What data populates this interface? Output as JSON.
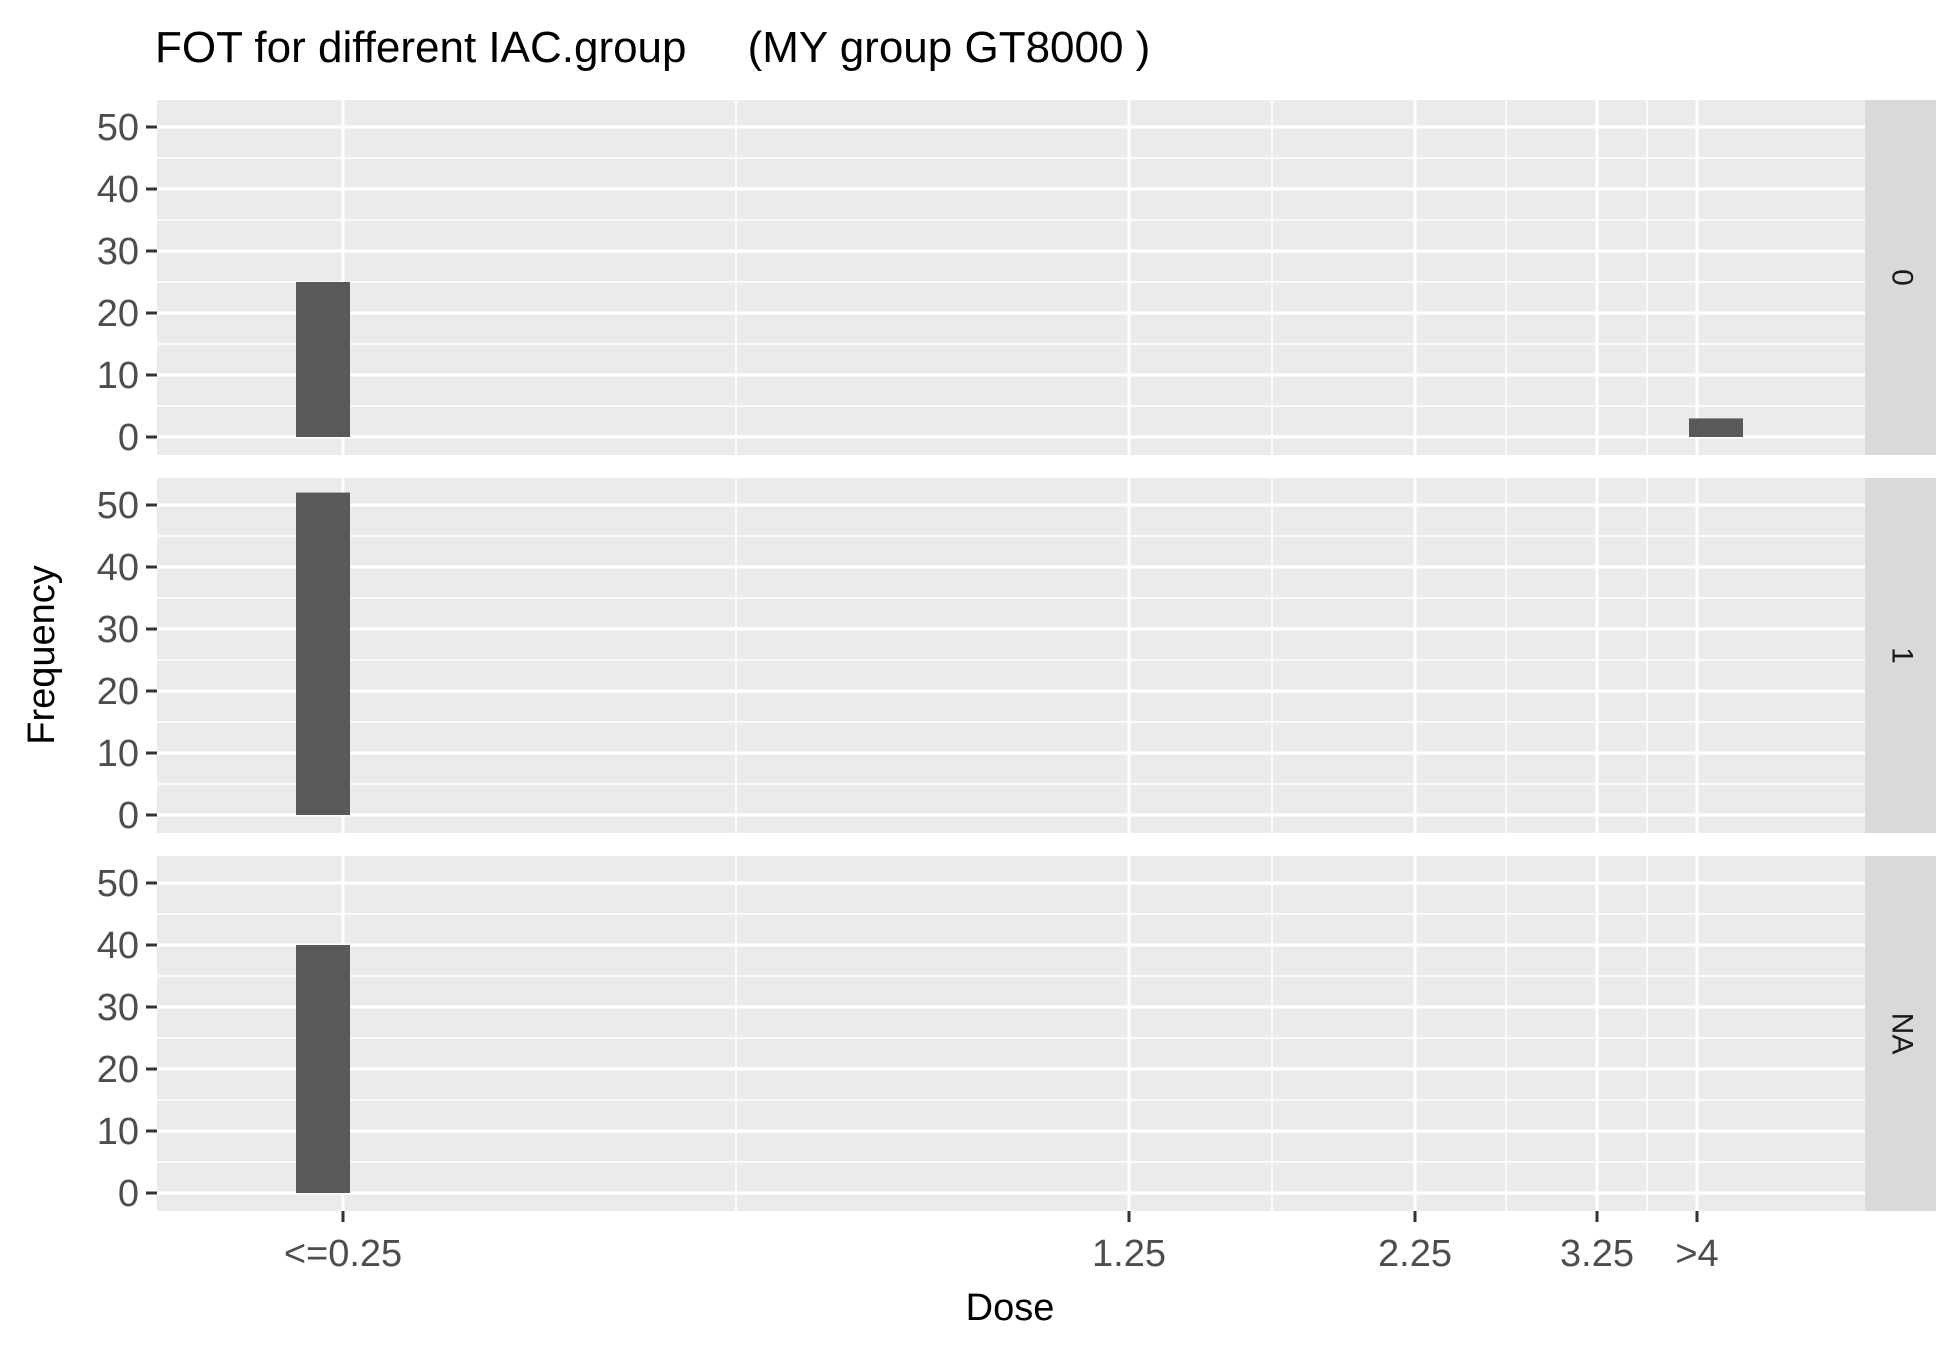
{
  "chart_data": {
    "type": "bar",
    "title": "FOT for different IAC.group     (MY group GT8000 )",
    "xlabel": "Dose",
    "ylabel": "Frequency",
    "x_tick_labels": [
      "<=0.25",
      "1.25",
      "2.25",
      "3.25",
      ">4"
    ],
    "y_ticks": [
      0,
      10,
      20,
      30,
      40,
      50
    ],
    "ylim": [
      0,
      55
    ],
    "grid": true,
    "panels": [
      {
        "strip": "0",
        "bars": [
          {
            "x": "<=0.25",
            "value": 25
          },
          {
            "x": ">4",
            "value": 3
          }
        ]
      },
      {
        "strip": "1",
        "bars": [
          {
            "x": "<=0.25",
            "value": 52
          }
        ]
      },
      {
        "strip": "NA",
        "bars": [
          {
            "x": "<=0.25",
            "value": 40
          }
        ]
      }
    ],
    "colors": {
      "panel_bg": "#ebebeb",
      "strip_bg": "#d9d9d9",
      "grid": "#ffffff",
      "bar": "#595959",
      "tick": "#333333"
    }
  }
}
